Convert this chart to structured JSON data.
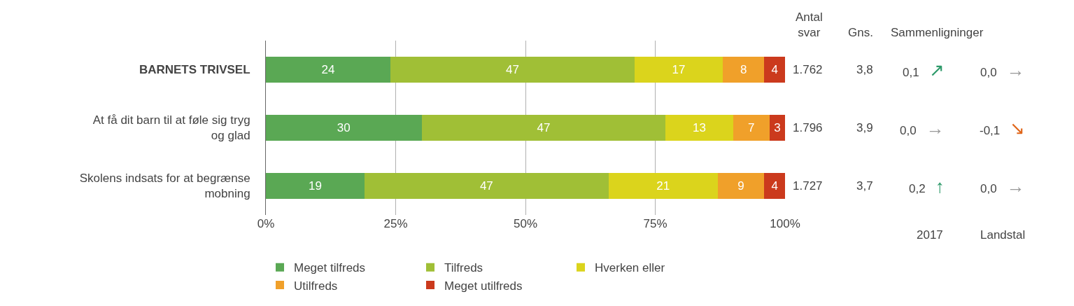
{
  "chart_data": {
    "type": "bar",
    "orientation": "horizontal",
    "stacked": true,
    "data_labels": true,
    "grid": "x",
    "legend": "bottom",
    "categories": [
      "BARNETS TRIVSEL",
      "At få dit barn til at føle sig tryg og glad",
      "Skolens indsats for at begrænse mobning"
    ],
    "series": [
      {
        "name": "Meget tilfreds",
        "color": "#5aa854",
        "values": [
          24,
          30,
          19
        ]
      },
      {
        "name": "Tilfreds",
        "color": "#a0bf36",
        "values": [
          47,
          47,
          47
        ]
      },
      {
        "name": "Hverken eller",
        "color": "#dbd41c",
        "values": [
          17,
          13,
          21
        ]
      },
      {
        "name": "Utilfreds",
        "color": "#f0a02a",
        "values": [
          8,
          7,
          9
        ]
      },
      {
        "name": "Meget utilfreds",
        "color": "#cb3a1d",
        "values": [
          4,
          3,
          4
        ]
      }
    ],
    "xlim": [
      0,
      100
    ],
    "xticks": [
      {
        "value": 0,
        "label": "0%"
      },
      {
        "value": 25,
        "label": "25%"
      },
      {
        "value": 50,
        "label": "50%"
      },
      {
        "value": 75,
        "label": "75%"
      },
      {
        "value": 100,
        "label": "100%"
      }
    ],
    "annotations": [
      "Antal\nsvar",
      "Gns.",
      "Sammenligninger",
      "2017",
      "Landstal",
      "1.762",
      "3,8",
      "0,1 ↗",
      "0,0 →",
      "1.796",
      "3,9",
      "0,0 →",
      "-0,1 ↘",
      "1.727",
      "3,7",
      "0,2 ↑",
      "0,0 →"
    ]
  }
}
